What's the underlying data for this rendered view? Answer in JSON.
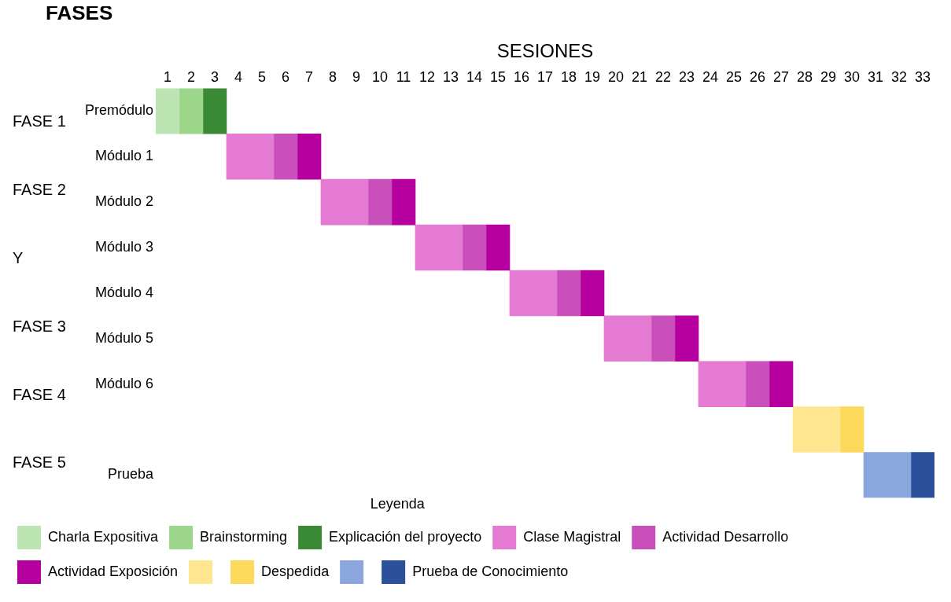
{
  "chart_data": {
    "type": "bar",
    "orientation": "horizontal",
    "xlabel": "SESIONES",
    "ylabel": "FASES",
    "legend_title": "Leyenda",
    "categories": [
      "Premódulo",
      "Módulo 1",
      "Módulo 2",
      "Módulo 3",
      "Módulo 4",
      "Módulo 5",
      "Módulo 6",
      null,
      "Prueba"
    ],
    "xlim": [
      0.5,
      33.5
    ],
    "xticks": [
      1,
      2,
      3,
      4,
      5,
      6,
      7,
      8,
      9,
      10,
      11,
      12,
      13,
      14,
      15,
      16,
      17,
      18,
      19,
      20,
      21,
      22,
      23,
      24,
      25,
      26,
      27,
      28,
      29,
      30,
      31,
      32,
      33
    ],
    "series": [
      {
        "name": "Charla Expositiva",
        "color": "#bde5b3",
        "base": [
          0.5,
          null,
          null,
          null,
          null,
          null,
          null,
          null,
          null
        ],
        "values": [
          1,
          null,
          null,
          null,
          null,
          null,
          null,
          null,
          null
        ]
      },
      {
        "name": "Brainstorming",
        "color": "#9bd68b",
        "base": [
          1.5,
          null,
          null,
          null,
          null,
          null,
          null,
          null,
          null
        ],
        "values": [
          1,
          null,
          null,
          null,
          null,
          null,
          null,
          null,
          null
        ]
      },
      {
        "name": "Explicación del proyecto",
        "color": "#3a8a35",
        "base": [
          2.5,
          null,
          null,
          null,
          null,
          null,
          null,
          null,
          null
        ],
        "values": [
          1,
          null,
          null,
          null,
          null,
          null,
          null,
          null,
          null
        ]
      },
      {
        "name": "Clase Magistral",
        "color": "#e57ad3",
        "base": [
          null,
          3.5,
          7.5,
          11.5,
          15.5,
          19.5,
          23.5,
          null,
          null
        ],
        "values": [
          null,
          2,
          2,
          2,
          2,
          2,
          2,
          null,
          null
        ]
      },
      {
        "name": "Actividad Desarrollo",
        "color": "#c94fba",
        "base": [
          null,
          5.5,
          9.5,
          13.5,
          17.5,
          21.5,
          25.5,
          null,
          null
        ],
        "values": [
          null,
          1,
          1,
          1,
          1,
          1,
          1,
          null,
          null
        ]
      },
      {
        "name": "Actividad Exposición",
        "color": "#b5009f",
        "base": [
          null,
          6.5,
          10.5,
          14.5,
          18.5,
          22.5,
          26.5,
          null,
          null
        ],
        "values": [
          null,
          1,
          1,
          1,
          1,
          1,
          1,
          null,
          null
        ]
      },
      {
        "color": "#fde68f",
        "base": [
          null,
          null,
          null,
          null,
          null,
          null,
          null,
          27.5,
          null
        ],
        "values": [
          null,
          null,
          null,
          null,
          null,
          null,
          null,
          2,
          null
        ]
      },
      {
        "name": "Despedida",
        "color": "#fcd95a",
        "base": [
          null,
          null,
          null,
          null,
          null,
          null,
          null,
          29.5,
          null
        ],
        "values": [
          null,
          null,
          null,
          null,
          null,
          null,
          null,
          1,
          null
        ]
      },
      {
        "color": "#8aa6dc",
        "base": [
          null,
          null,
          null,
          null,
          null,
          null,
          null,
          null,
          30.5
        ],
        "values": [
          null,
          null,
          null,
          null,
          null,
          null,
          null,
          null,
          2
        ]
      },
      {
        "name": "Prueba de Conocimiento",
        "color": "#2b4f9a",
        "base": [
          null,
          null,
          null,
          null,
          null,
          null,
          null,
          null,
          32.5
        ],
        "values": [
          null,
          null,
          null,
          null,
          null,
          null,
          null,
          null,
          1
        ]
      }
    ],
    "annotations": [
      "FASE 1",
      "FASE 2",
      "Y",
      "FASE 3",
      "FASE 4",
      "FASE 5"
    ],
    "grid": false,
    "legend": "bottom"
  }
}
